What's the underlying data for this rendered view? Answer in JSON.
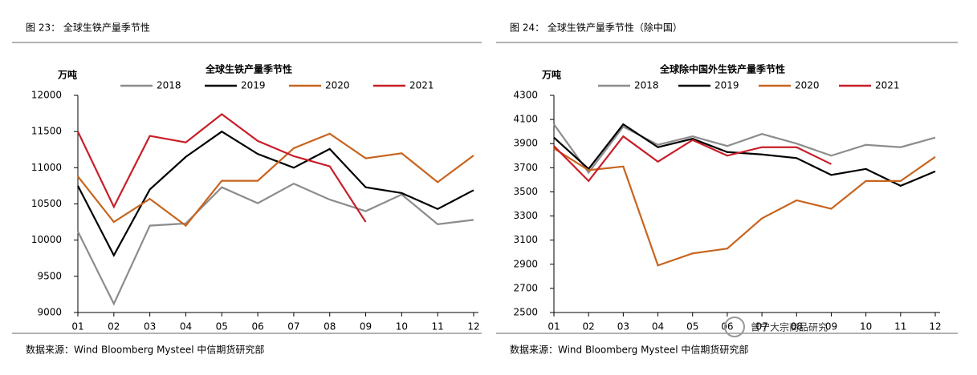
{
  "chart_data": [
    {
      "type": "line",
      "caption": "图 23：  全球生铁产量季节性",
      "title": "全球生铁产量季节性",
      "y_label": "万吨",
      "source": "数据来源：Wind Bloomberg Mysteel 中信期货研究部",
      "categories": [
        "01",
        "02",
        "03",
        "04",
        "05",
        "06",
        "07",
        "08",
        "09",
        "10",
        "11",
        "12"
      ],
      "ylim": [
        9000,
        12000
      ],
      "yticks": [
        9000,
        9500,
        10000,
        10500,
        11000,
        11500,
        12000
      ],
      "series": [
        {
          "name": "2018",
          "color": "#8c8c8c",
          "values": [
            10120,
            9120,
            10200,
            10230,
            10730,
            10510,
            10780,
            10560,
            10400,
            10630,
            10220,
            10280
          ]
        },
        {
          "name": "2019",
          "color": "#000000",
          "values": [
            10750,
            9790,
            10700,
            11150,
            11500,
            11190,
            11000,
            11260,
            10730,
            10650,
            10430,
            10690
          ]
        },
        {
          "name": "2020",
          "color": "#c8641e",
          "values": [
            10880,
            10250,
            10570,
            10200,
            10820,
            10820,
            11270,
            11470,
            11130,
            11200,
            10800,
            11170
          ]
        },
        {
          "name": "2021",
          "color": "#c81e28",
          "values": [
            11500,
            10460,
            11440,
            11350,
            11740,
            11370,
            11160,
            11020,
            10250,
            null,
            null,
            null
          ]
        }
      ]
    },
    {
      "type": "line",
      "caption": "图 24：  全球生铁产量季节性（除中国）",
      "title": "全球除中国外生铁产量季节性",
      "y_label": "万吨",
      "source": "数据来源：Wind Bloomberg Mysteel 中信期货研究部",
      "watermark": "曾宁大宗商品研究",
      "categories": [
        "01",
        "02",
        "03",
        "04",
        "05",
        "06",
        "07",
        "08",
        "09",
        "10",
        "11",
        "12"
      ],
      "ylim": [
        2500,
        4300
      ],
      "yticks": [
        2500,
        2700,
        2900,
        3100,
        3300,
        3500,
        3700,
        3900,
        4100,
        4300
      ],
      "series": [
        {
          "name": "2018",
          "color": "#8c8c8c",
          "values": [
            4060,
            3660,
            4040,
            3890,
            3960,
            3880,
            3980,
            3900,
            3800,
            3890,
            3870,
            3950
          ]
        },
        {
          "name": "2019",
          "color": "#000000",
          "values": [
            3950,
            3690,
            4060,
            3870,
            3940,
            3830,
            3810,
            3780,
            3640,
            3690,
            3550,
            3670
          ]
        },
        {
          "name": "2020",
          "color": "#c8641e",
          "values": [
            3860,
            3680,
            3710,
            2890,
            2990,
            3030,
            3280,
            3430,
            3360,
            3590,
            3590,
            3790
          ]
        },
        {
          "name": "2021",
          "color": "#c81e28",
          "values": [
            3880,
            3590,
            3960,
            3750,
            3930,
            3800,
            3870,
            3870,
            3730,
            null,
            null,
            null
          ]
        }
      ]
    }
  ]
}
